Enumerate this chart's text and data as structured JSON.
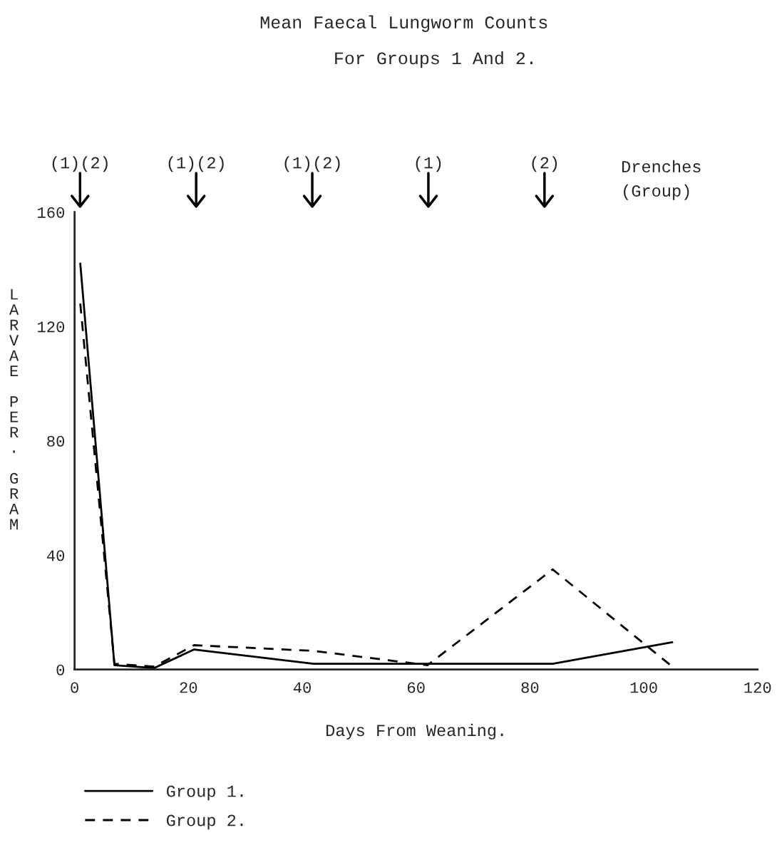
{
  "chart_data": {
    "type": "line",
    "title": "Mean Faecal Lungworm Counts",
    "subtitle": "For Groups 1 And 2.",
    "xlabel": "Days From Weaning.",
    "ylabel": "LARVAE PER. GRAM",
    "xlim": [
      0,
      120
    ],
    "xticks": [
      0,
      20,
      40,
      60,
      80,
      100,
      120
    ],
    "ylim": [
      0,
      160
    ],
    "yticks": [
      0,
      40,
      80,
      120,
      160
    ],
    "grid": false,
    "legend": "bottom",
    "marker": "none",
    "series": [
      {
        "name": "Group 1.",
        "color": "#000000",
        "line_style": "solid",
        "x": [
          1,
          7,
          14,
          21,
          42,
          84,
          105
        ],
        "values": [
          142,
          1.5,
          0.5,
          7,
          2,
          2,
          9.5
        ]
      },
      {
        "name": "Group 2.",
        "color": "#000000",
        "line_style": "dashed",
        "x": [
          1,
          7,
          14,
          21,
          42,
          62,
          84,
          105
        ],
        "values": [
          128,
          2,
          1,
          8.5,
          6.5,
          1.5,
          35,
          1
        ]
      }
    ],
    "annotations": [
      "(1)(2)",
      "(1)(2)",
      "(1)(2)",
      "(1)",
      "(2)",
      "Drenches\n(Group)"
    ]
  }
}
